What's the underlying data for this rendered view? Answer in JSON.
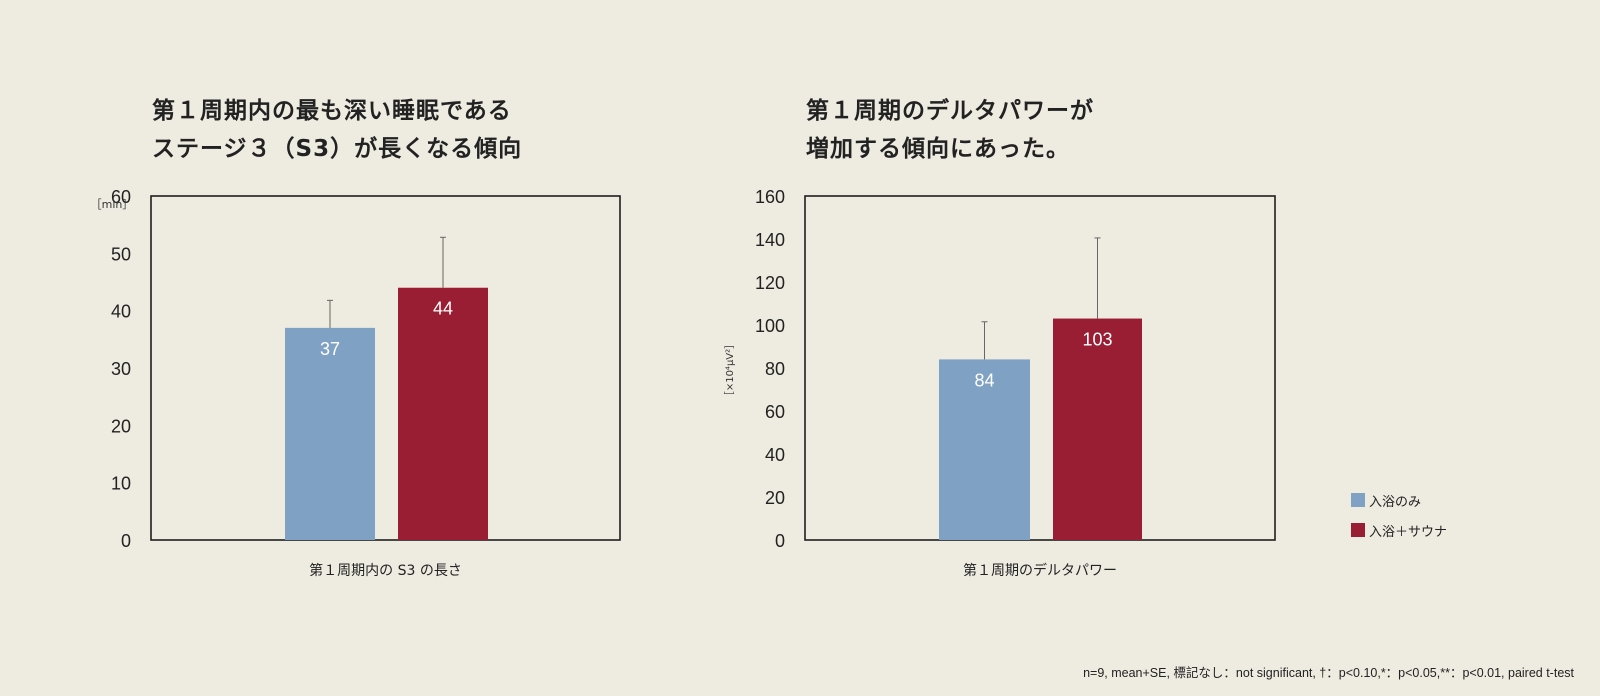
{
  "colors": {
    "bath_only": "#7fa2c4",
    "bath_sauna": "#9a1e33",
    "axis": "#1e1e1e",
    "error_bar": "#666666"
  },
  "chart_data": [
    {
      "type": "bar",
      "title": [
        "第１周期内の最も深い睡眠である",
        "ステージ３（S3）が長くなる傾向"
      ],
      "xlabel": "第１周期内の S3 の長さ",
      "ylabel": "［min］",
      "ylim": [
        0,
        60
      ],
      "yticks": [
        0,
        10,
        20,
        30,
        40,
        50,
        60
      ],
      "series": [
        {
          "name": "入浴のみ",
          "values": [
            37
          ],
          "error": [
            4.8
          ],
          "label": "37"
        },
        {
          "name": "入浴＋サウナ",
          "values": [
            44
          ],
          "error": [
            8.8
          ],
          "label": "44"
        }
      ]
    },
    {
      "type": "bar",
      "title": [
        "第１周期のデルタパワーが",
        "増加する傾向にあった。"
      ],
      "xlabel": "第１周期のデルタパワー",
      "ylabel": "［×10⁴μV²］",
      "ylim": [
        0,
        160
      ],
      "yticks": [
        0,
        20,
        40,
        60,
        80,
        100,
        120,
        140,
        160
      ],
      "series": [
        {
          "name": "入浴のみ",
          "values": [
            84
          ],
          "error": [
            17.5
          ],
          "label": "84"
        },
        {
          "name": "入浴＋サウナ",
          "values": [
            103
          ],
          "error": [
            37.5
          ],
          "label": "103"
        }
      ]
    }
  ],
  "legend": [
    {
      "label": "入浴のみ",
      "color": "#7fa2c4"
    },
    {
      "label": "入浴＋サウナ",
      "color": "#9a1e33"
    }
  ],
  "footnote": "n=9, mean+SE, 標記なし：not significant, †：p<0.10,*：p<0.05,**：p<0.01, paired t-test"
}
